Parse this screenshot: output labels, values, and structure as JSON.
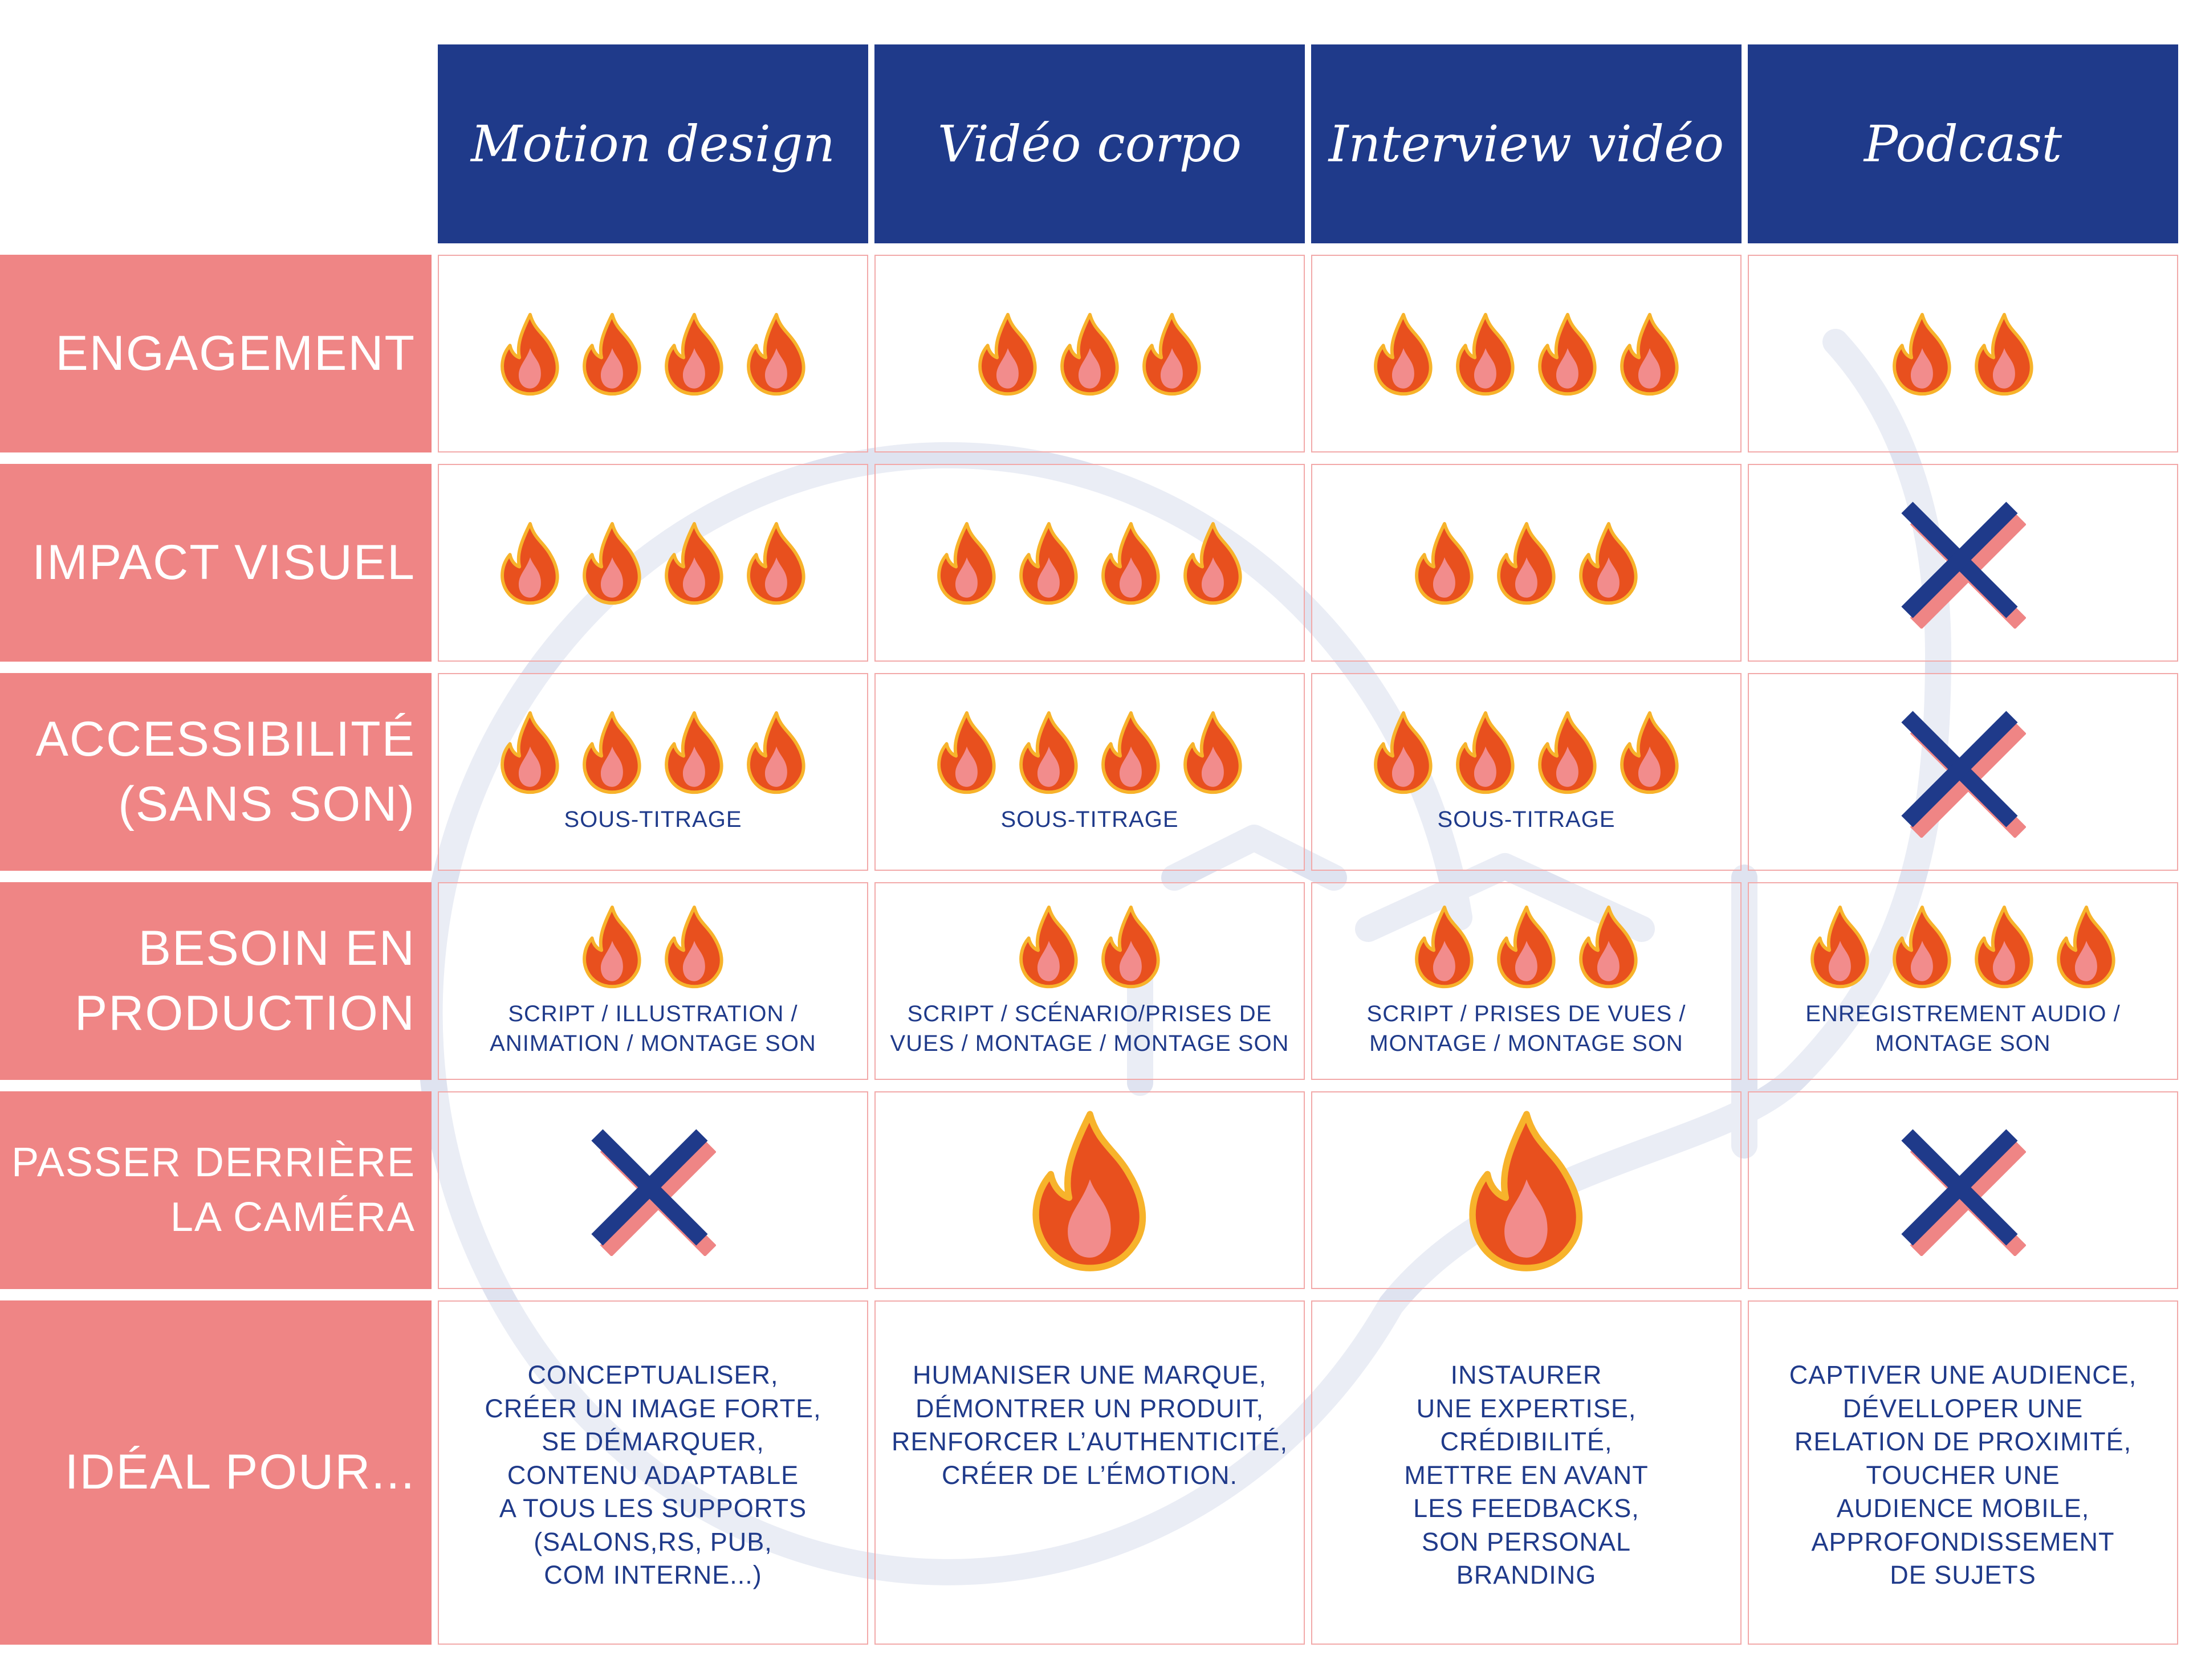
{
  "colors": {
    "header_bg": "#1f3a8a",
    "label_bg": "#ef8585",
    "text_blue": "#1f3a8a",
    "flame": "#e8501e",
    "cross_blue": "#1f3a8a",
    "cross_shadow": "#ef8585"
  },
  "columns": [
    "Motion design",
    "Vidéo corpo",
    "Interview vidéo",
    "Podcast"
  ],
  "rows": [
    {
      "label": "ENGAGEMENT",
      "cells": [
        {
          "flames": 4,
          "note": ""
        },
        {
          "flames": 3,
          "note": ""
        },
        {
          "flames": 4,
          "note": ""
        },
        {
          "flames": 2,
          "note": ""
        }
      ]
    },
    {
      "label": "IMPACT VISUEL",
      "cells": [
        {
          "flames": 4,
          "note": ""
        },
        {
          "flames": 4,
          "note": ""
        },
        {
          "flames": 3,
          "note": ""
        },
        {
          "icon": "cross-icon"
        }
      ]
    },
    {
      "label": "ACCESSIBILITÉ\n(SANS SON)",
      "cells": [
        {
          "flames": 4,
          "note": "SOUS-TITRAGE"
        },
        {
          "flames": 4,
          "note": "SOUS-TITRAGE"
        },
        {
          "flames": 4,
          "note": "SOUS-TITRAGE"
        },
        {
          "icon": "cross-icon"
        }
      ]
    },
    {
      "label": "BESOIN EN\nPRODUCTION",
      "cells": [
        {
          "flames": 2,
          "note": "SCRIPT / ILLUSTRATION /\nANIMATION / MONTAGE SON"
        },
        {
          "flames": 2,
          "note": "SCRIPT / SCÉNARIO/PRISES DE\nVUES / MONTAGE / MONTAGE SON"
        },
        {
          "flames": 3,
          "note": "SCRIPT / PRISES DE VUES /\nMONTAGE / MONTAGE SON"
        },
        {
          "flames": 4,
          "note": "ENREGISTREMENT AUDIO /\nMONTAGE SON"
        }
      ]
    },
    {
      "label": "PASSER DERRIÈRE\nLA CAMÉRA",
      "cells": [
        {
          "icon": "cross-icon"
        },
        {
          "icon": "big-flame-icon"
        },
        {
          "icon": "big-flame-icon"
        },
        {
          "icon": "cross-icon"
        }
      ]
    },
    {
      "label": "IDÉAL POUR...",
      "cells": [
        {
          "text": "CONCEPTUALISER,\nCRÉER UN IMAGE FORTE,\nSE DÉMARQUER,\nCONTENU ADAPTABLE\nA TOUS LES SUPPORTS\n(SALONS,RS, PUB,\nCOM INTERNE...)"
        },
        {
          "text": "HUMANISER UNE MARQUE,\nDÉMONTRER UN PRODUIT,\nRENFORCER L’AUTHENTICITÉ,\nCRÉER DE L’ÉMOTION."
        },
        {
          "text": "INSTAURER\nUNE EXPERTISE,\nCRÉDIBILITÉ,\nMETTRE EN AVANT\nLES FEEDBACKS,\nSON PERSONAL\nBRANDING"
        },
        {
          "text": "CAPTIVER UNE AUDIENCE,\nDÉVELLOPER UNE\nRELATION DE PROXIMITÉ,\nTOUCHER UNE\nAUDIENCE MOBILE,\nAPPROFONDISSEMENT\nDE SUJETS"
        }
      ]
    }
  ]
}
